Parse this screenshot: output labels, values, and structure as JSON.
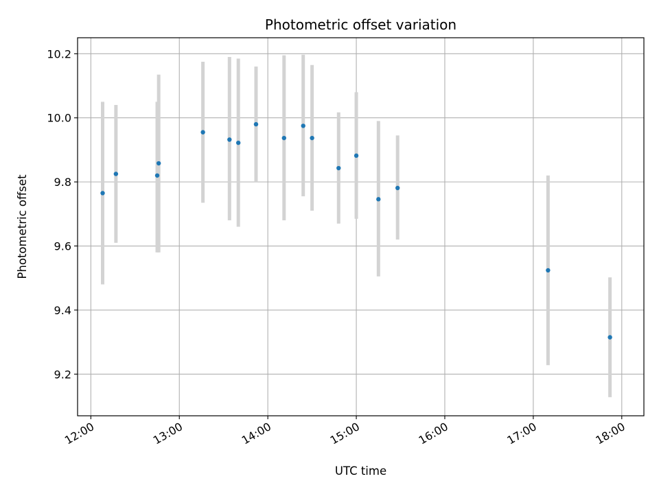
{
  "chart_data": {
    "type": "scatter",
    "title": "Photometric offset variation",
    "xlabel": "UTC time",
    "ylabel": "Photometric offset",
    "xlim": [
      "11:51",
      "18:15"
    ],
    "ylim": [
      9.07,
      10.25
    ],
    "x_ticks": [
      "12:00",
      "13:00",
      "14:00",
      "15:00",
      "16:00",
      "17:00",
      "18:00"
    ],
    "y_ticks": [
      9.2,
      9.4,
      9.6,
      9.8,
      10.0,
      10.2
    ],
    "grid": true,
    "colors": {
      "point": "#1f77b4",
      "error_bar": "#d3d3d3",
      "grid": "#b0b0b0"
    },
    "points": [
      {
        "x": "12:08",
        "y": 9.765,
        "ylo": 9.48,
        "yhi": 10.05
      },
      {
        "x": "12:17",
        "y": 9.825,
        "ylo": 9.61,
        "yhi": 10.04
      },
      {
        "x": "12:45",
        "y": 9.82,
        "ylo": 9.58,
        "yhi": 10.05
      },
      {
        "x": "12:46",
        "y": 9.858,
        "ylo": 9.58,
        "yhi": 10.135
      },
      {
        "x": "13:16",
        "y": 9.955,
        "ylo": 9.735,
        "yhi": 10.175
      },
      {
        "x": "13:34",
        "y": 9.932,
        "ylo": 9.68,
        "yhi": 10.19
      },
      {
        "x": "13:40",
        "y": 9.922,
        "ylo": 9.66,
        "yhi": 10.185
      },
      {
        "x": "13:52",
        "y": 9.98,
        "ylo": 9.8,
        "yhi": 10.16
      },
      {
        "x": "14:11",
        "y": 9.937,
        "ylo": 9.68,
        "yhi": 10.195
      },
      {
        "x": "14:24",
        "y": 9.975,
        "ylo": 9.755,
        "yhi": 10.197
      },
      {
        "x": "14:30",
        "y": 9.937,
        "ylo": 9.71,
        "yhi": 10.165
      },
      {
        "x": "14:48",
        "y": 9.843,
        "ylo": 9.67,
        "yhi": 10.017
      },
      {
        "x": "15:00",
        "y": 9.882,
        "ylo": 9.685,
        "yhi": 10.08
      },
      {
        "x": "15:15",
        "y": 9.746,
        "ylo": 9.505,
        "yhi": 9.99
      },
      {
        "x": "15:28",
        "y": 9.781,
        "ylo": 9.62,
        "yhi": 9.945
      },
      {
        "x": "17:10",
        "y": 9.524,
        "ylo": 9.228,
        "yhi": 9.82
      },
      {
        "x": "17:52",
        "y": 9.315,
        "ylo": 9.128,
        "yhi": 9.502
      }
    ]
  }
}
